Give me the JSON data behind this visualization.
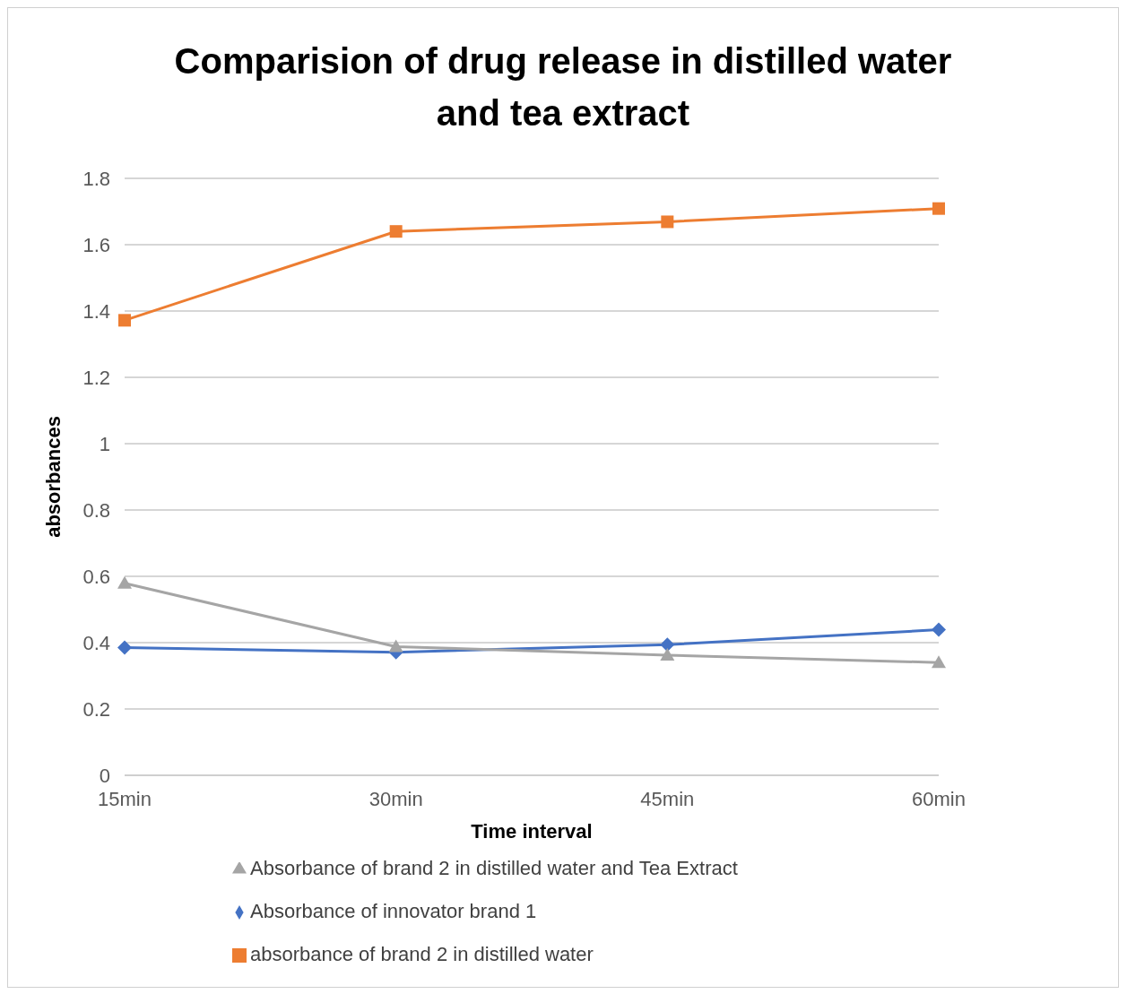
{
  "chart_data": {
    "type": "line",
    "title": "Comparision of drug release in distilled water and tea extract",
    "xlabel": "Time interval",
    "ylabel": "absorbances",
    "categories": [
      "15min",
      "30min",
      "45min",
      "60min"
    ],
    "ylim": [
      0,
      1.8
    ],
    "yticks": [
      0,
      0.2,
      0.4,
      0.6,
      0.8,
      1,
      1.2,
      1.4,
      1.6,
      1.8
    ],
    "grid": "y",
    "legend": "bottom",
    "series": [
      {
        "name": "Absorbance of innovator brand 1",
        "color": "#4472c4",
        "marker": "diamond",
        "values": [
          0.385,
          0.371,
          0.394,
          0.439
        ]
      },
      {
        "name": "absorbance of brand 2 in distilled water",
        "color": "#ed7d31",
        "marker": "square",
        "values": [
          1.372,
          1.64,
          1.669,
          1.709
        ]
      },
      {
        "name": "Absorbance of brand 2 in distilled water and Tea Extract",
        "color": "#a5a5a5",
        "marker": "triangle",
        "values": [
          0.579,
          0.388,
          0.362,
          0.34
        ]
      }
    ]
  }
}
